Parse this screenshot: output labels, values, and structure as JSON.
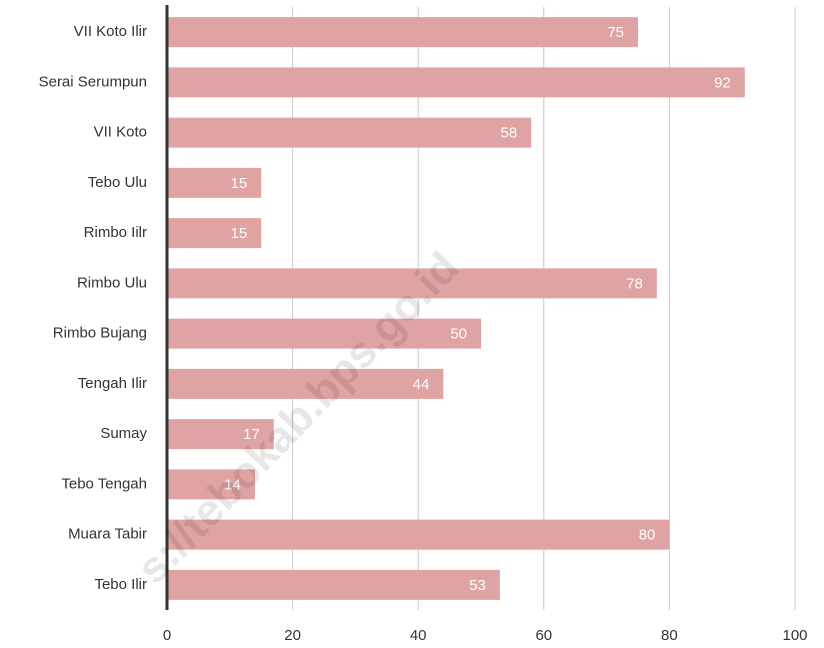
{
  "chart_data": {
    "type": "barh",
    "categories": [
      "VII Koto Ilir",
      "Serai Serumpun",
      "VII Koto",
      "Tebo Ulu",
      "Rimbo Iilr",
      "Rimbo Ulu",
      "Rimbo Bujang",
      "Tengah Ilir",
      "Sumay",
      "Tebo Tengah",
      "Muara Tabir",
      "Tebo Ilir"
    ],
    "values": [
      75,
      92,
      58,
      15,
      15,
      78,
      50,
      44,
      17,
      14,
      80,
      53
    ],
    "color": "#dfa3a3",
    "xlim": [
      0,
      100
    ],
    "xticks": [
      0,
      20,
      40,
      60,
      80,
      100
    ],
    "grid": true,
    "watermark": "s://tebokab.bps.go.id"
  }
}
